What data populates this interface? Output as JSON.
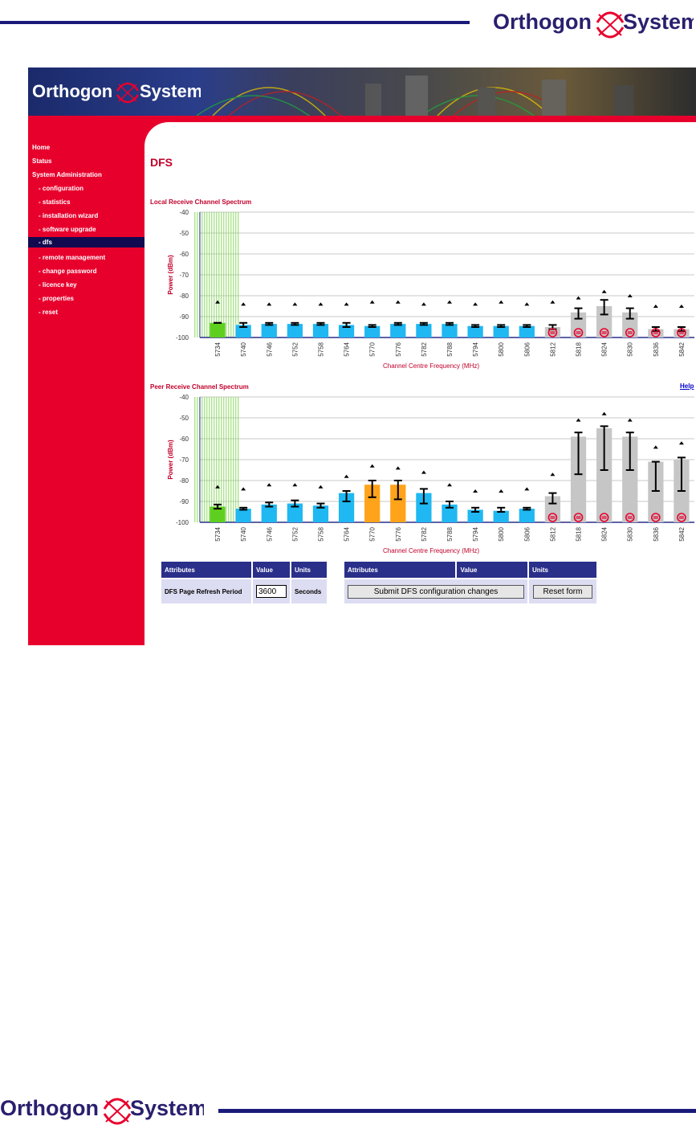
{
  "brand": {
    "name_left": "Orthogon",
    "name_right": "Systems"
  },
  "nav": {
    "items": [
      {
        "label": "Home",
        "sub": false
      },
      {
        "label": "Status",
        "sub": false
      },
      {
        "label": "System Administration",
        "sub": false
      },
      {
        "label": "- configuration",
        "sub": true
      },
      {
        "label": "- statistics",
        "sub": true
      },
      {
        "label": "- installation wizard",
        "sub": true
      },
      {
        "label": "- software upgrade",
        "sub": true
      },
      {
        "label": "- dfs",
        "sub": true,
        "active": true
      },
      {
        "label": "- remote management",
        "sub": true
      },
      {
        "label": "- change password",
        "sub": true
      },
      {
        "label": "- licence key",
        "sub": true
      },
      {
        "label": "- properties",
        "sub": true
      },
      {
        "label": "- reset",
        "sub": true
      }
    ]
  },
  "page": {
    "title": "DFS",
    "help_label": "Help"
  },
  "colors": {
    "green": "#5fcf1f",
    "blue": "#1fb8f2",
    "orange": "#ffa31a",
    "gray": "#c6c6c6",
    "red": "#e8002d",
    "grid_green": "#88d860"
  },
  "chart_data": [
    {
      "type": "bar",
      "title": "Local Receive Channel Spectrum",
      "xlabel": "Channel Centre Frequency (MHz)",
      "ylabel": "Power (dBm)",
      "ylim": [
        -100,
        -40
      ],
      "yticks": [
        -40,
        -50,
        -60,
        -70,
        -80,
        -90,
        -100
      ],
      "categories": [
        "5734",
        "5740",
        "5746",
        "5752",
        "5758",
        "5764",
        "5770",
        "5776",
        "5782",
        "5788",
        "5794",
        "5800",
        "5806",
        "5812",
        "5818",
        "5824",
        "5830",
        "5836",
        "5842"
      ],
      "values": [
        -93,
        -94,
        -93.5,
        -93.5,
        -93.5,
        -94,
        -94.5,
        -93.5,
        -93.5,
        -93.5,
        -94.5,
        -94.5,
        -94.5,
        -95,
        -88,
        -85,
        -88,
        -96,
        -96
      ],
      "err_low": [
        -93,
        -95,
        -94,
        -94,
        -94,
        -95,
        -95,
        -94,
        -94,
        -94,
        -95,
        -95,
        -95,
        -96,
        -91,
        -89,
        -91,
        -97,
        -97
      ],
      "err_high": [
        -93,
        -93,
        -93,
        -93,
        -93,
        -93,
        -94,
        -93,
        -93,
        -93,
        -94,
        -94,
        -94,
        -94,
        -86,
        -82,
        -86,
        -95,
        -95
      ],
      "peak": [
        -83,
        -84,
        -84,
        -84,
        -84,
        -84,
        -83,
        -83,
        -84,
        -83,
        -84,
        -83,
        -84,
        -83,
        -81,
        -78,
        -80,
        -85,
        -85
      ],
      "status": [
        "green",
        "blue",
        "blue",
        "blue",
        "blue",
        "blue",
        "blue",
        "blue",
        "blue",
        "blue",
        "blue",
        "blue",
        "blue",
        "gray",
        "gray",
        "gray",
        "gray",
        "gray",
        "gray"
      ],
      "barred": [
        false,
        false,
        false,
        false,
        false,
        false,
        false,
        false,
        false,
        false,
        false,
        false,
        false,
        true,
        true,
        true,
        true,
        true,
        true
      ]
    },
    {
      "type": "bar",
      "title": "Peer Receive Channel Spectrum",
      "xlabel": "Channel Centre Frequency (MHz)",
      "ylabel": "Power (dBm)",
      "ylim": [
        -100,
        -40
      ],
      "yticks": [
        -40,
        -50,
        -60,
        -70,
        -80,
        -90,
        -100
      ],
      "categories": [
        "5734",
        "5740",
        "5746",
        "5752",
        "5758",
        "5764",
        "5770",
        "5776",
        "5782",
        "5788",
        "5794",
        "5800",
        "5806",
        "5812",
        "5818",
        "5824",
        "5830",
        "5836",
        "5842"
      ],
      "values": [
        -92.5,
        -93.5,
        -91.5,
        -91,
        -92,
        -86,
        -82,
        -82,
        -86,
        -91.5,
        -94,
        -94.5,
        -93.5,
        -87.5,
        -59,
        -55,
        -59,
        -71,
        -70
      ],
      "err_low": [
        -93.5,
        -94,
        -92.5,
        -92.5,
        -93,
        -90,
        -88,
        -89,
        -91,
        -93,
        -95,
        -95,
        -94,
        -91,
        -77,
        -75,
        -75,
        -85,
        -85
      ],
      "err_high": [
        -91.5,
        -93,
        -90.5,
        -89.5,
        -91,
        -85,
        -80,
        -80,
        -84,
        -90,
        -93,
        -93,
        -93,
        -86,
        -57,
        -54,
        -57,
        -71,
        -69
      ],
      "peak": [
        -83,
        -84,
        -82,
        -82,
        -83,
        -78,
        -73,
        -74,
        -76,
        -82,
        -85,
        -85,
        -84,
        -77,
        -51,
        -48,
        -51,
        -64,
        -62
      ],
      "status": [
        "green",
        "blue",
        "blue",
        "blue",
        "blue",
        "blue",
        "orange",
        "orange",
        "blue",
        "blue",
        "blue",
        "blue",
        "blue",
        "gray",
        "gray",
        "gray",
        "gray",
        "gray",
        "gray"
      ],
      "barred": [
        false,
        false,
        false,
        false,
        false,
        false,
        false,
        false,
        false,
        false,
        false,
        false,
        false,
        true,
        true,
        true,
        true,
        true,
        true
      ]
    }
  ],
  "settings_table": {
    "headers": [
      "Attributes",
      "Value",
      "Units"
    ],
    "row": {
      "attribute": "DFS Page Refresh Period",
      "value": "3600",
      "units": "Seconds"
    }
  },
  "actions_table": {
    "headers": [
      "Attributes",
      "Value",
      "Units"
    ],
    "submit_label": "Submit DFS configuration changes",
    "reset_label": "Reset form"
  }
}
